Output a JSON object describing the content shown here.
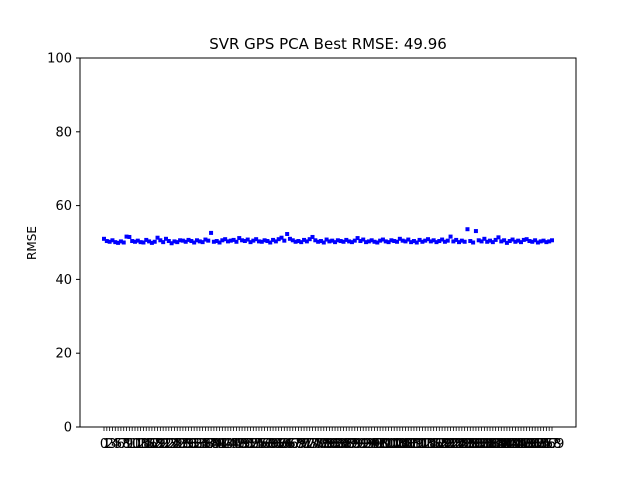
{
  "chart_data": {
    "type": "scatter",
    "title": "SVR GPS PCA Best RMSE: 49.96",
    "xlabel": "",
    "ylabel": "RMSE",
    "ylim": [
      0,
      100
    ],
    "yticks": [
      0,
      20,
      40,
      60,
      80,
      100
    ],
    "grid": false,
    "legend": "none",
    "marker_color": "#0000ff",
    "x_tick_labels_note": "dense overlapping numeric labels",
    "series": [
      {
        "values": [
          51.0,
          50.4,
          50.2,
          50.6,
          50.1,
          49.9,
          50.3,
          50.0,
          51.6,
          51.5,
          50.4,
          50.2,
          50.5,
          50.1,
          50.0,
          50.7,
          50.3,
          49.9,
          50.2,
          51.3,
          50.6,
          50.1,
          51.0,
          50.4,
          49.8,
          50.3,
          50.1,
          50.6,
          50.5,
          50.2,
          50.7,
          50.4,
          50.0,
          50.6,
          50.3,
          50.1,
          50.8,
          50.5,
          52.6,
          50.2,
          50.4,
          50.0,
          50.6,
          50.9,
          50.3,
          50.5,
          50.7,
          50.2,
          51.2,
          50.6,
          50.4,
          50.8,
          50.1,
          50.5,
          50.9,
          50.3,
          50.2,
          50.6,
          50.4,
          50.0,
          50.7,
          50.3,
          50.9,
          51.3,
          50.5,
          52.3,
          51.0,
          50.6,
          50.2,
          50.4,
          50.1,
          50.7,
          50.3,
          50.9,
          51.5,
          50.6,
          50.2,
          50.4,
          50.0,
          50.8,
          50.3,
          50.5,
          50.1,
          50.6,
          50.4,
          50.2,
          50.7,
          50.3,
          50.1,
          50.5,
          51.2,
          50.4,
          50.8,
          50.1,
          50.3,
          50.6,
          50.2,
          50.0,
          50.5,
          50.8,
          50.3,
          50.1,
          50.6,
          50.4,
          50.2,
          51.0,
          50.5,
          50.3,
          50.8,
          50.1,
          50.4,
          50.0,
          50.7,
          50.2,
          50.5,
          50.9,
          50.3,
          50.6,
          50.1,
          50.4,
          50.8,
          50.2,
          50.5,
          51.6,
          50.3,
          50.7,
          50.1,
          50.5,
          50.2,
          53.6,
          50.4,
          50.0,
          53.1,
          50.6,
          50.3,
          51.0,
          50.2,
          50.5,
          50.1,
          50.7,
          51.4,
          50.3,
          50.6,
          49.9,
          50.4,
          50.8,
          50.2,
          50.5,
          50.1,
          50.7,
          50.9,
          50.4,
          50.2,
          50.6,
          50.0,
          50.3,
          50.5,
          50.1,
          50.3,
          50.6
        ]
      }
    ]
  }
}
